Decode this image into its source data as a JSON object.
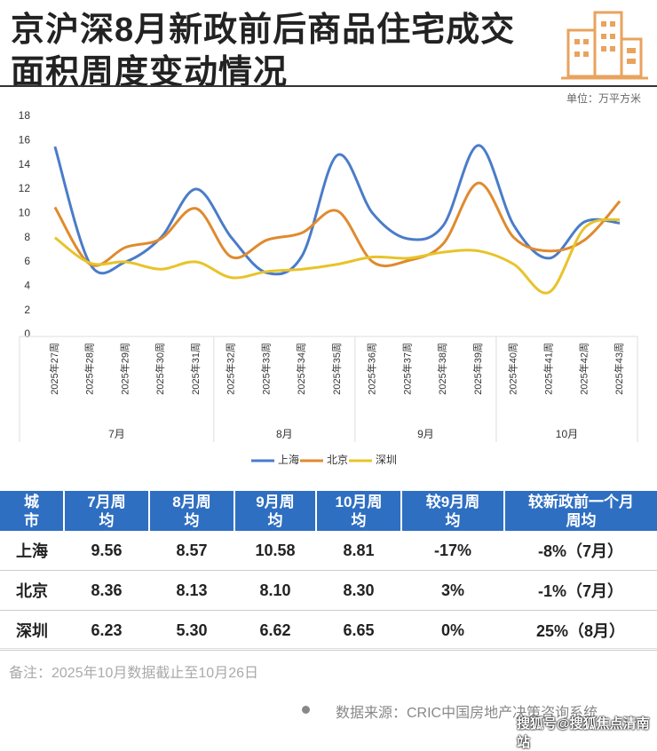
{
  "title": [
    "京沪深8月新政前后商品住宅成交",
    "面积周度变动情况"
  ],
  "chart_data": {
    "type": "line",
    "unit": "单位：万平方米",
    "categories": [
      "2025年27周",
      "2025年28周",
      "2025年29周",
      "2025年30周",
      "2025年31周",
      "2025年32周",
      "2025年33周",
      "2025年34周",
      "2025年35周",
      "2025年36周",
      "2025年37周",
      "2025年38周",
      "2025年39周",
      "2025年40周",
      "2025年41周",
      "2025年42周",
      "2025年43周"
    ],
    "x_groups": [
      {
        "label": "7月",
        "count": 5
      },
      {
        "label": "8月",
        "count": 4
      },
      {
        "label": "9月",
        "count": 4
      },
      {
        "label": "10月",
        "count": 4
      }
    ],
    "series": [
      {
        "name": "上海",
        "color": "#4a7cc9",
        "values": [
          15.5,
          5.8,
          6.0,
          8.0,
          12.0,
          8.0,
          5.1,
          6.5,
          14.8,
          10.0,
          7.9,
          9.0,
          15.6,
          9.0,
          6.3,
          9.3,
          9.2
        ]
      },
      {
        "name": "北京",
        "color": "#e08a2e",
        "values": [
          10.5,
          5.8,
          7.2,
          7.9,
          10.4,
          6.4,
          7.8,
          8.4,
          10.2,
          6.0,
          6.1,
          7.5,
          12.5,
          8.0,
          6.9,
          7.8,
          11.0
        ]
      },
      {
        "name": "深圳",
        "color": "#e8c32a",
        "values": [
          8.0,
          5.9,
          6.0,
          5.4,
          6.0,
          4.7,
          5.2,
          5.4,
          5.8,
          6.4,
          6.3,
          6.8,
          6.9,
          5.8,
          3.5,
          8.8,
          9.5
        ]
      }
    ],
    "ylim": [
      0,
      18
    ],
    "yticks": [
      0,
      2,
      4,
      6,
      8,
      10,
      12,
      14,
      16,
      18
    ],
    "grid": false,
    "legend": "bottom"
  },
  "table": {
    "header": [
      "城市",
      "7月周均",
      "8月周均",
      "9月周均",
      "10月周均",
      "较9月周均",
      "较新政前一个月周均"
    ],
    "rows": [
      [
        "上海",
        "9.56",
        "8.57",
        "10.58",
        "8.81",
        "-17%",
        "-8%（7月）"
      ],
      [
        "北京",
        "8.36",
        "8.13",
        "8.10",
        "8.30",
        "3%",
        "-1%（7月）"
      ],
      [
        "深圳",
        "6.23",
        "5.30",
        "6.62",
        "6.65",
        "0%",
        "25%（8月）"
      ]
    ]
  },
  "footnote": "备注：2025年10月数据截止至10月26日",
  "source": "数据来源：CRIC中国房地产决策咨询系统",
  "watermark": "搜狐号@搜狐焦点清南站"
}
